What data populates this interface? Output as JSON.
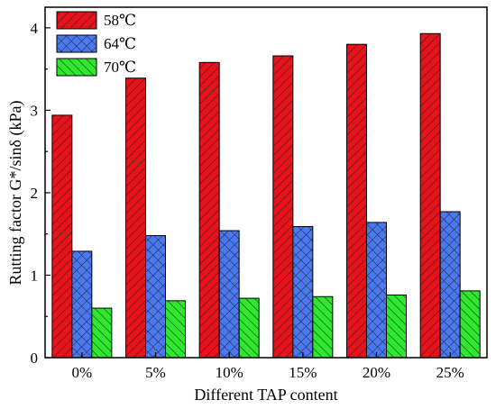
{
  "chart_data": {
    "type": "bar",
    "xlabel": "Different TAP content",
    "ylabel": "Rutting factor G*/sinδ (kPa)",
    "categories": [
      "0%",
      "5%",
      "10%",
      "15%",
      "20%",
      "25%"
    ],
    "ylim": [
      0,
      4.25
    ],
    "yticks": [
      0,
      1,
      2,
      3,
      4
    ],
    "legend_position": "top-left",
    "grid": false,
    "series": [
      {
        "name": "58℃",
        "values": [
          2.94,
          3.39,
          3.58,
          3.66,
          3.8,
          3.93
        ],
        "color": "#e8121a",
        "hatch": "diagonal"
      },
      {
        "name": "64℃",
        "values": [
          1.29,
          1.48,
          1.54,
          1.59,
          1.64,
          1.77
        ],
        "color": "#4a78f0",
        "hatch": "crosshatch"
      },
      {
        "name": "70℃",
        "values": [
          0.6,
          0.69,
          0.72,
          0.74,
          0.76,
          0.81
        ],
        "color": "#2ee82e",
        "hatch": "back-diagonal"
      }
    ]
  }
}
